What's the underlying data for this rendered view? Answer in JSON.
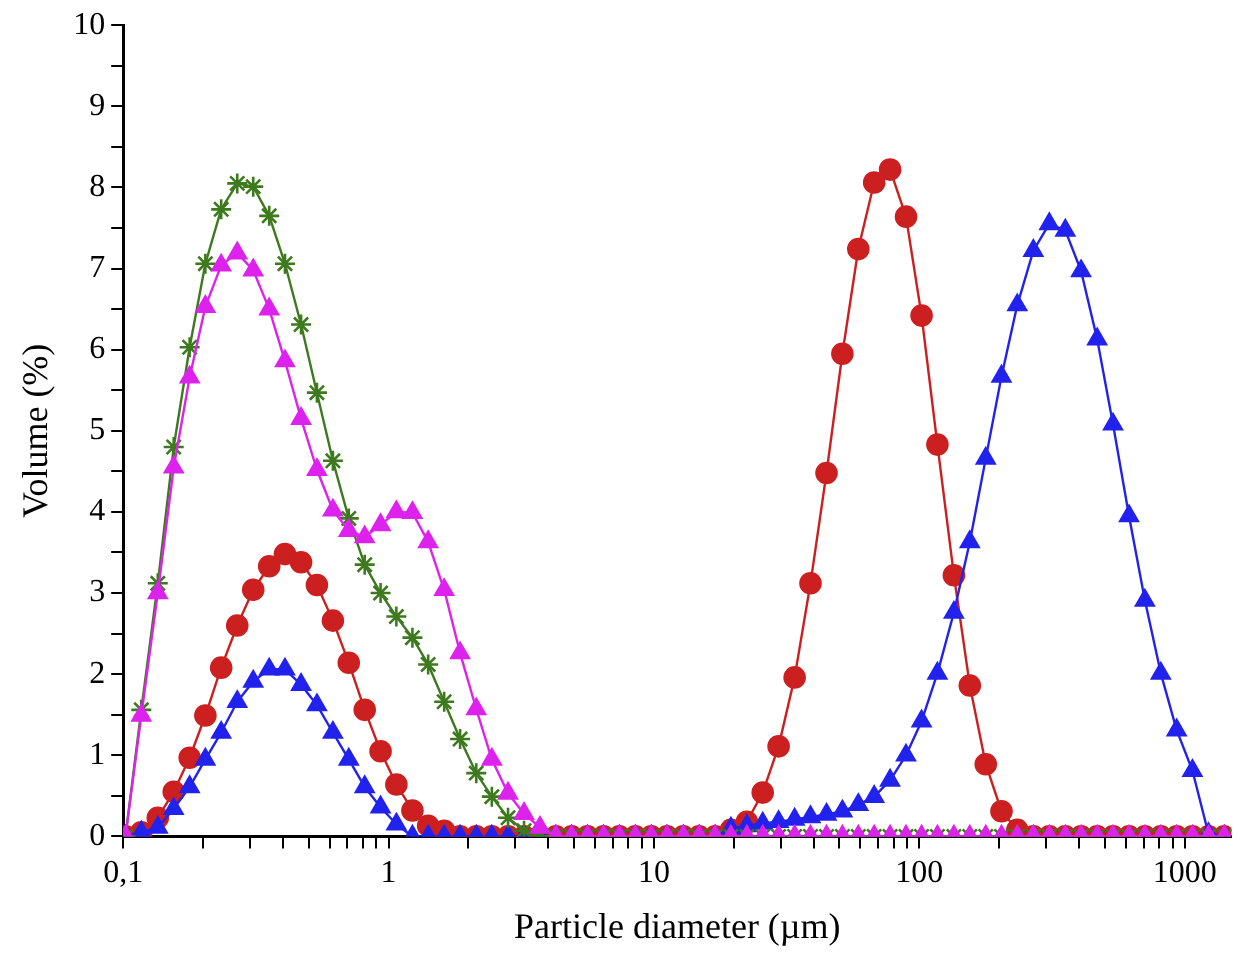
{
  "chart_data": {
    "type": "line",
    "xlabel": "Particle diameter (µm)",
    "ylabel": "Volume (%)",
    "log": "x",
    "grid": false,
    "legend": false,
    "xlim": [
      0.1,
      1500
    ],
    "ylim": [
      0,
      10
    ],
    "xticks": [
      {
        "value": 0.1,
        "label": "0,1"
      },
      {
        "value": 0.2,
        "label": null
      },
      {
        "value": 0.3,
        "label": null
      },
      {
        "value": 0.4,
        "label": null
      },
      {
        "value": 0.5,
        "label": null
      },
      {
        "value": 0.6,
        "label": null
      },
      {
        "value": 0.7,
        "label": null
      },
      {
        "value": 0.8,
        "label": null
      },
      {
        "value": 0.9,
        "label": null
      },
      1,
      {
        "value": 2,
        "label": null
      },
      {
        "value": 3,
        "label": null
      },
      {
        "value": 4,
        "label": null
      },
      {
        "value": 5,
        "label": null
      },
      {
        "value": 6,
        "label": null
      },
      {
        "value": 7,
        "label": null
      },
      {
        "value": 8,
        "label": null
      },
      {
        "value": 9,
        "label": null
      },
      10,
      {
        "value": 20,
        "label": null
      },
      {
        "value": 30,
        "label": null
      },
      {
        "value": 40,
        "label": null
      },
      {
        "value": 50,
        "label": null
      },
      {
        "value": 60,
        "label": null
      },
      {
        "value": 70,
        "label": null
      },
      {
        "value": 80,
        "label": null
      },
      {
        "value": 90,
        "label": null
      },
      100,
      {
        "value": 200,
        "label": null
      },
      {
        "value": 300,
        "label": null
      },
      {
        "value": 400,
        "label": null
      },
      {
        "value": 500,
        "label": null
      },
      {
        "value": 600,
        "label": null
      },
      {
        "value": 700,
        "label": null
      },
      {
        "value": 800,
        "label": null
      },
      {
        "value": 900,
        "label": null
      },
      1000
    ],
    "yticks": [
      0,
      {
        "value": 0.5,
        "label": null
      },
      1,
      {
        "value": 1.5,
        "label": null
      },
      2,
      {
        "value": 2.5,
        "label": null
      },
      3,
      {
        "value": 3.5,
        "label": null
      },
      4,
      {
        "value": 4.5,
        "label": null
      },
      5,
      {
        "value": 5.5,
        "label": null
      },
      6,
      {
        "value": 6.5,
        "label": null
      },
      7,
      {
        "value": 7.5,
        "label": null
      },
      8,
      {
        "value": 8.5,
        "label": null
      },
      9,
      {
        "value": 9.5,
        "label": null
      },
      10
    ],
    "x": [
      0.102,
      0.117,
      0.135,
      0.155,
      0.178,
      0.204,
      0.234,
      0.269,
      0.309,
      0.355,
      0.407,
      0.468,
      0.537,
      0.617,
      0.708,
      0.813,
      0.933,
      1.07,
      1.23,
      1.41,
      1.62,
      1.86,
      2.14,
      2.45,
      2.82,
      3.24,
      3.72,
      4.27,
      4.9,
      5.62,
      6.46,
      7.41,
      8.51,
      9.77,
      11.2,
      12.9,
      14.8,
      17,
      19.5,
      22.4,
      25.7,
      29.5,
      33.9,
      38.9,
      44.7,
      51.3,
      58.9,
      67.6,
      77.6,
      89.1,
      102,
      117,
      135,
      155,
      178,
      204,
      234,
      269,
      309,
      355,
      407,
      468,
      537,
      617,
      708,
      813,
      933,
      1070,
      1230,
      1410
    ],
    "series": [
      {
        "color": "#cc1f1f",
        "marker": "circle",
        "values": [
          0,
          0.05,
          0.23,
          0.55,
          0.97,
          1.49,
          2.08,
          2.6,
          3.04,
          3.33,
          3.48,
          3.38,
          3.1,
          2.66,
          2.14,
          1.56,
          1.05,
          0.64,
          0.32,
          0.13,
          0.07,
          0,
          0,
          0,
          0,
          0,
          0,
          0,
          0,
          0,
          0,
          0,
          0,
          0,
          0,
          0,
          0,
          0,
          0.08,
          0.18,
          0.54,
          1.11,
          1.96,
          3.12,
          4.48,
          5.95,
          7.24,
          8.06,
          8.22,
          7.64,
          6.42,
          4.83,
          3.22,
          1.86,
          0.89,
          0.31,
          0.08,
          0,
          0,
          0,
          0,
          0,
          0,
          0,
          0,
          0,
          0,
          0,
          0,
          0
        ]
      },
      {
        "color": "#2222ee",
        "marker": "triangle",
        "values": [
          0,
          0.05,
          0.11,
          0.34,
          0.61,
          0.95,
          1.28,
          1.66,
          1.91,
          2.06,
          2.06,
          1.87,
          1.62,
          1.28,
          0.95,
          0.61,
          0.36,
          0.15,
          0,
          0,
          0,
          0,
          0,
          0,
          0,
          0,
          0,
          0,
          0,
          0,
          0,
          0,
          0,
          0,
          0,
          0,
          0,
          0,
          0.1,
          0.13,
          0.16,
          0.18,
          0.21,
          0.24,
          0.27,
          0.31,
          0.39,
          0.49,
          0.69,
          1,
          1.42,
          2.01,
          2.76,
          3.63,
          4.66,
          5.67,
          6.55,
          7.22,
          7.55,
          7.47,
          6.97,
          6.13,
          5.08,
          3.95,
          2.91,
          2.01,
          1.31,
          0.81,
          0.03,
          0
        ]
      },
      {
        "color": "#3d7a1e",
        "marker": "cross",
        "values": [
          0,
          1.56,
          3.12,
          4.8,
          6.03,
          7.06,
          7.73,
          8.05,
          8.01,
          7.65,
          7.06,
          6.31,
          5.47,
          4.63,
          3.92,
          3.35,
          3,
          2.71,
          2.45,
          2.12,
          1.66,
          1.2,
          0.78,
          0.49,
          0.23,
          0.07,
          0,
          0,
          0,
          0,
          0,
          0,
          0,
          0,
          0,
          0,
          0,
          0,
          0,
          0,
          0,
          0,
          0,
          0,
          0,
          0,
          0,
          0,
          0,
          0,
          0,
          0,
          0,
          0,
          0,
          0,
          0,
          0,
          0,
          0,
          0,
          0,
          0,
          0,
          0,
          0,
          0,
          0,
          0,
          0
        ]
      },
      {
        "color": "#dd22ee",
        "marker": "triangle",
        "values": [
          0,
          1.49,
          3,
          4.55,
          5.66,
          6.53,
          7.04,
          7.19,
          6.98,
          6.5,
          5.86,
          5.15,
          4.52,
          4.02,
          3.77,
          3.69,
          3.84,
          4,
          3.99,
          3.63,
          3.04,
          2.26,
          1.57,
          0.95,
          0.53,
          0.28,
          0.11,
          0,
          0,
          0,
          0,
          0,
          0,
          0,
          0,
          0,
          0,
          0,
          0,
          0,
          0,
          0,
          0,
          0,
          0,
          0,
          0,
          0,
          0,
          0,
          0,
          0,
          0,
          0,
          0,
          0,
          0,
          0,
          0,
          0,
          0,
          0,
          0,
          0,
          0,
          0,
          0,
          0,
          0,
          0
        ]
      }
    ]
  }
}
